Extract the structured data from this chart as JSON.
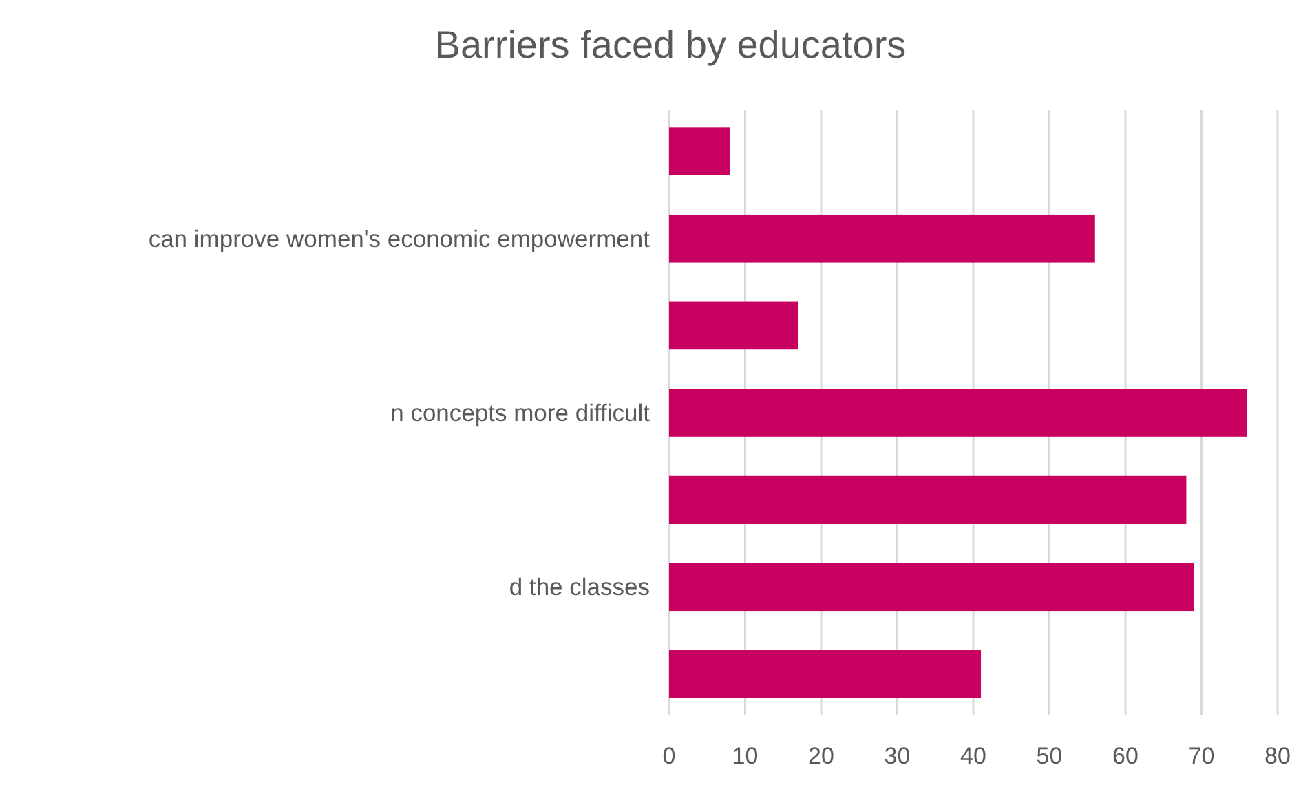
{
  "chart_data": {
    "type": "bar",
    "orientation": "horizontal",
    "title": "Barriers faced by educators",
    "categories": [
      null,
      "can improve women's economic empowerment",
      null,
      "n concepts more difficult",
      null,
      "d the classes",
      null
    ],
    "values": [
      8,
      56,
      17,
      76,
      68,
      69,
      41
    ],
    "color": "#c8005f",
    "xlim": [
      0,
      80
    ],
    "xticks": [
      0,
      10,
      20,
      30,
      40,
      50,
      60,
      70,
      80
    ],
    "grid": "x"
  }
}
